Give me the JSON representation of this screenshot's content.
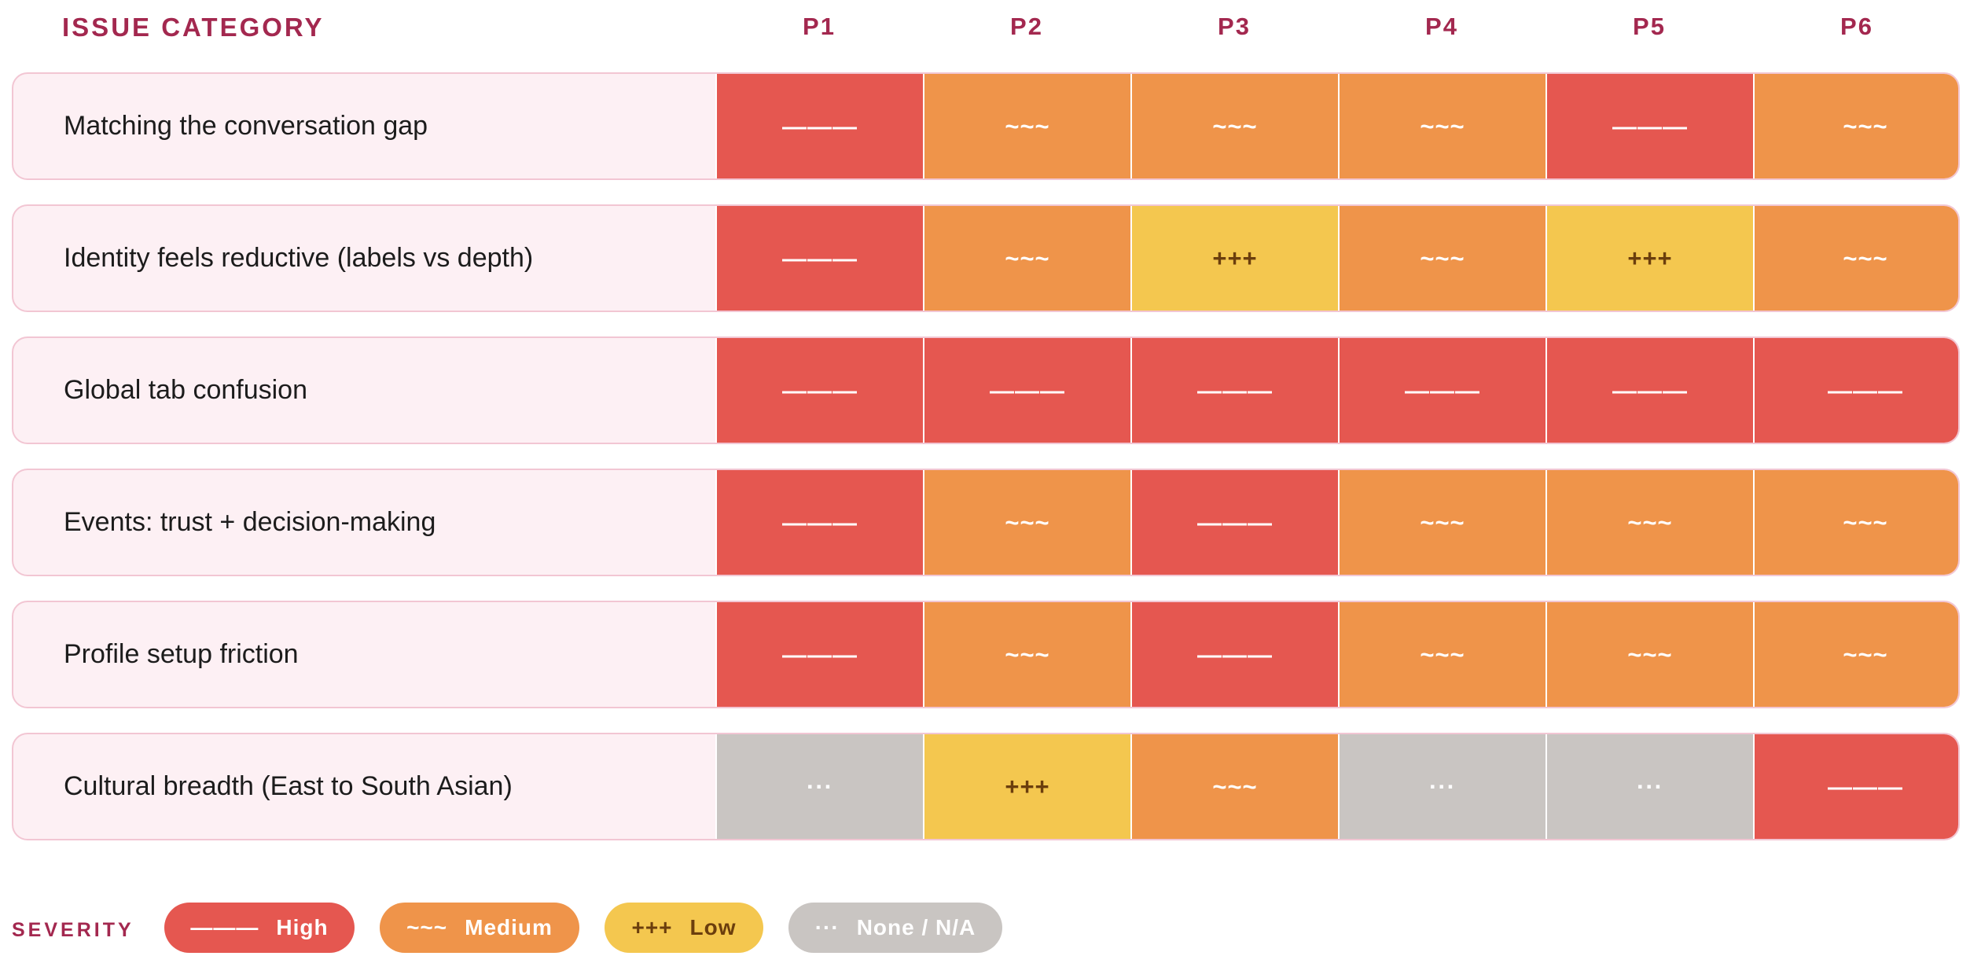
{
  "chart_data": {
    "type": "heatmap",
    "row_header": "ISSUE CATEGORY",
    "columns": [
      "P1",
      "P2",
      "P3",
      "P4",
      "P5",
      "P6"
    ],
    "rows": [
      {
        "label": "Matching the conversation gap",
        "values": [
          "high",
          "medium",
          "medium",
          "medium",
          "high",
          "medium"
        ]
      },
      {
        "label": "Identity feels reductive (labels vs depth)",
        "values": [
          "high",
          "medium",
          "low",
          "medium",
          "low",
          "medium"
        ]
      },
      {
        "label": "Global tab confusion",
        "values": [
          "high",
          "high",
          "high",
          "high",
          "high",
          "high"
        ]
      },
      {
        "label": "Events: trust + decision-making",
        "values": [
          "high",
          "medium",
          "high",
          "medium",
          "medium",
          "medium"
        ]
      },
      {
        "label": "Profile setup friction",
        "values": [
          "high",
          "medium",
          "high",
          "medium",
          "medium",
          "medium"
        ]
      },
      {
        "label": "Cultural breadth (East to South Asian)",
        "values": [
          "none",
          "low",
          "medium",
          "none",
          "none",
          "high"
        ]
      }
    ],
    "legend_title": "SEVERITY",
    "levels": {
      "high": {
        "symbol": "———",
        "label": "High",
        "color": "#e55750",
        "text_color": "#ffffff"
      },
      "medium": {
        "symbol": "~~~",
        "label": "Medium",
        "color": "#ef944a",
        "text_color": "#ffffff"
      },
      "low": {
        "symbol": "+++",
        "label": "Low",
        "color": "#f4c74f",
        "text_color": "#6b3e0d"
      },
      "none": {
        "symbol": "···",
        "label": "None / N/A",
        "color": "#c9c5c2",
        "text_color": "#ffffff"
      }
    },
    "legend_order": [
      "high",
      "medium",
      "low",
      "none"
    ]
  },
  "theme": {
    "accent": "#a3284f",
    "row_background": "#fdf0f4",
    "row_border": "#f2c6d3"
  }
}
